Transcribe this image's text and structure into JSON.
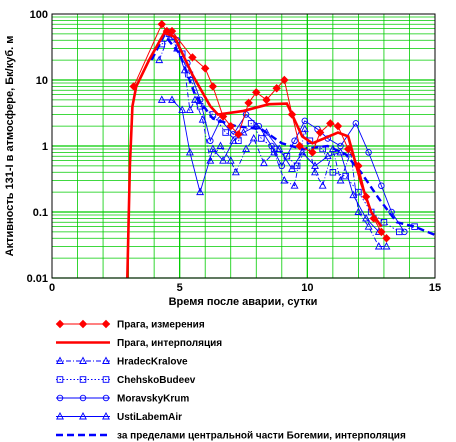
{
  "chart_data": {
    "type": "line",
    "xlabel": "Время после аварии, сутки",
    "ylabel": "Активность 131-I в атмосфере, Бк/куб. м",
    "x_ticks": [
      "0",
      "5",
      "10",
      "15"
    ],
    "y_ticks": [
      "0.01",
      "0.1",
      "1",
      "10",
      "100"
    ],
    "xlim": [
      0,
      15
    ],
    "ylim": [
      0.01,
      100
    ],
    "yscale": "log",
    "grid": true,
    "grid_color": "#00cc00",
    "background": "#ffffff",
    "legend_position": "bottom",
    "series": [
      {
        "name": "Прага, измерения",
        "color": "#ff0000",
        "marker": "diamond",
        "style": "measured",
        "points": [
          [
            3.2,
            8
          ],
          [
            4.3,
            70
          ],
          [
            4.5,
            55
          ],
          [
            4.7,
            55
          ],
          [
            5.5,
            22
          ],
          [
            6.0,
            15
          ],
          [
            6.3,
            8
          ],
          [
            6.7,
            2.8
          ],
          [
            7.0,
            2
          ],
          [
            7.3,
            1.5
          ],
          [
            7.7,
            4.5
          ],
          [
            8.0,
            6.5
          ],
          [
            8.4,
            5
          ],
          [
            8.8,
            7.5
          ],
          [
            9.1,
            10
          ],
          [
            9.4,
            3
          ],
          [
            9.7,
            1.0
          ],
          [
            10.2,
            0.8
          ],
          [
            10.5,
            1.6
          ],
          [
            10.9,
            2.2
          ],
          [
            11.2,
            2.0
          ],
          [
            11.6,
            0.9
          ],
          [
            12.0,
            0.5
          ],
          [
            12.3,
            0.17
          ],
          [
            12.6,
            0.08
          ],
          [
            12.9,
            0.05
          ],
          [
            13.1,
            0.04
          ]
        ]
      },
      {
        "name": "Прага, интерполяция",
        "color": "#ff0000",
        "style": "thick",
        "points": [
          [
            2.95,
            0.01
          ],
          [
            3.05,
            0.5
          ],
          [
            3.15,
            4
          ],
          [
            3.3,
            8
          ],
          [
            3.8,
            20
          ],
          [
            4.4,
            52
          ],
          [
            4.8,
            45
          ],
          [
            5.5,
            12
          ],
          [
            6.2,
            4
          ],
          [
            6.5,
            3
          ],
          [
            7.5,
            3.4
          ],
          [
            8.5,
            4.3
          ],
          [
            9.2,
            4.4
          ],
          [
            9.8,
            1.4
          ],
          [
            10.2,
            1.1
          ],
          [
            11.2,
            1.6
          ],
          [
            11.6,
            1.4
          ],
          [
            12.1,
            0.28
          ],
          [
            12.5,
            0.1
          ],
          [
            12.9,
            0.06
          ]
        ]
      },
      {
        "name": "HradecKralove",
        "color": "#0000ff",
        "marker": "triangle",
        "style": "dashdot",
        "points": [
          [
            4.2,
            20
          ],
          [
            4.6,
            50
          ],
          [
            4.9,
            30
          ],
          [
            5.2,
            14
          ],
          [
            5.4,
            3.5
          ],
          [
            5.6,
            5
          ],
          [
            5.9,
            2.5
          ],
          [
            6.2,
            0.6
          ],
          [
            6.6,
            1.0
          ],
          [
            7.0,
            0.6
          ],
          [
            7.2,
            0.4
          ],
          [
            7.6,
            0.9
          ],
          [
            7.9,
            1.3
          ],
          [
            8.3,
            0.55
          ],
          [
            8.7,
            0.8
          ],
          [
            9.1,
            0.3
          ],
          [
            9.5,
            0.25
          ],
          [
            9.9,
            1.8
          ],
          [
            10.3,
            0.4
          ],
          [
            10.6,
            0.25
          ],
          [
            11.0,
            0.9
          ],
          [
            11.3,
            0.3
          ],
          [
            11.7,
            0.8
          ],
          [
            12.0,
            0.1
          ],
          [
            12.4,
            0.06
          ],
          [
            12.8,
            0.03
          ],
          [
            13.1,
            0.03
          ]
        ]
      },
      {
        "name": "ChehskoBudeev",
        "color": "#0000ff",
        "marker": "square",
        "style": "dotted",
        "points": [
          [
            4.3,
            35
          ],
          [
            4.7,
            45
          ],
          [
            5.1,
            25
          ],
          [
            5.4,
            12
          ],
          [
            5.8,
            4
          ],
          [
            6.3,
            3
          ],
          [
            6.8,
            1.6
          ],
          [
            7.3,
            1.2
          ],
          [
            7.8,
            2.2
          ],
          [
            8.2,
            1.3
          ],
          [
            8.7,
            0.9
          ],
          [
            9.2,
            0.7
          ],
          [
            9.6,
            0.5
          ],
          [
            10.1,
            1.2
          ],
          [
            10.6,
            0.9
          ],
          [
            11.0,
            0.4
          ],
          [
            11.5,
            0.35
          ],
          [
            12.0,
            0.2
          ],
          [
            12.5,
            0.1
          ],
          [
            13.0,
            0.07
          ],
          [
            13.6,
            0.05
          ],
          [
            14.2,
            0.06
          ]
        ]
      },
      {
        "name": "MoravskyKrum",
        "color": "#0000ff",
        "marker": "circle",
        "style": "solid",
        "points": [
          [
            4.5,
            55
          ],
          [
            4.9,
            40
          ],
          [
            5.3,
            18
          ],
          [
            5.8,
            5
          ],
          [
            6.2,
            1.2
          ],
          [
            6.6,
            2.5
          ],
          [
            7.1,
            1.5
          ],
          [
            7.6,
            3
          ],
          [
            8.1,
            2
          ],
          [
            8.6,
            1.0
          ],
          [
            9.0,
            0.5
          ],
          [
            9.5,
            1.2
          ],
          [
            9.9,
            2.4
          ],
          [
            10.4,
            1.8
          ],
          [
            10.8,
            1.3
          ],
          [
            11.3,
            1.0
          ],
          [
            11.9,
            2.2
          ],
          [
            12.4,
            0.8
          ],
          [
            12.9,
            0.25
          ],
          [
            13.3,
            0.1
          ],
          [
            13.8,
            0.05
          ]
        ]
      },
      {
        "name": "UstiLabemAir",
        "color": "#0000ff",
        "marker": "triangle",
        "style": "solid",
        "points": [
          [
            4.3,
            5
          ],
          [
            4.7,
            5
          ],
          [
            5.1,
            3.5
          ],
          [
            5.4,
            0.8
          ],
          [
            5.8,
            0.2
          ],
          [
            6.3,
            0.9
          ],
          [
            6.7,
            0.6
          ],
          [
            7.1,
            1.2
          ],
          [
            7.5,
            1.6
          ],
          [
            8.0,
            2
          ],
          [
            8.4,
            1.6
          ],
          [
            8.9,
            0.9
          ],
          [
            9.4,
            0.45
          ],
          [
            9.8,
            0.8
          ],
          [
            10.3,
            0.5
          ],
          [
            10.8,
            0.7
          ],
          [
            11.3,
            0.8
          ],
          [
            11.8,
            0.18
          ],
          [
            12.3,
            0.08
          ],
          [
            12.8,
            0.05
          ]
        ]
      },
      {
        "name": "за пределами центральной части Богемии, интерполяция",
        "color": "#0000ff",
        "style": "dashed",
        "points": [
          [
            3.9,
            20
          ],
          [
            4.4,
            48
          ],
          [
            5.0,
            25
          ],
          [
            5.6,
            6
          ],
          [
            6.3,
            2.6
          ],
          [
            7.2,
            2
          ],
          [
            8.2,
            1.8
          ],
          [
            9.0,
            1.1
          ],
          [
            9.8,
            0.9
          ],
          [
            10.8,
            1.0
          ],
          [
            11.5,
            0.75
          ],
          [
            12.1,
            0.4
          ],
          [
            12.8,
            0.16
          ],
          [
            13.5,
            0.07
          ],
          [
            14.2,
            0.06
          ],
          [
            15.0,
            0.045
          ]
        ]
      }
    ]
  }
}
